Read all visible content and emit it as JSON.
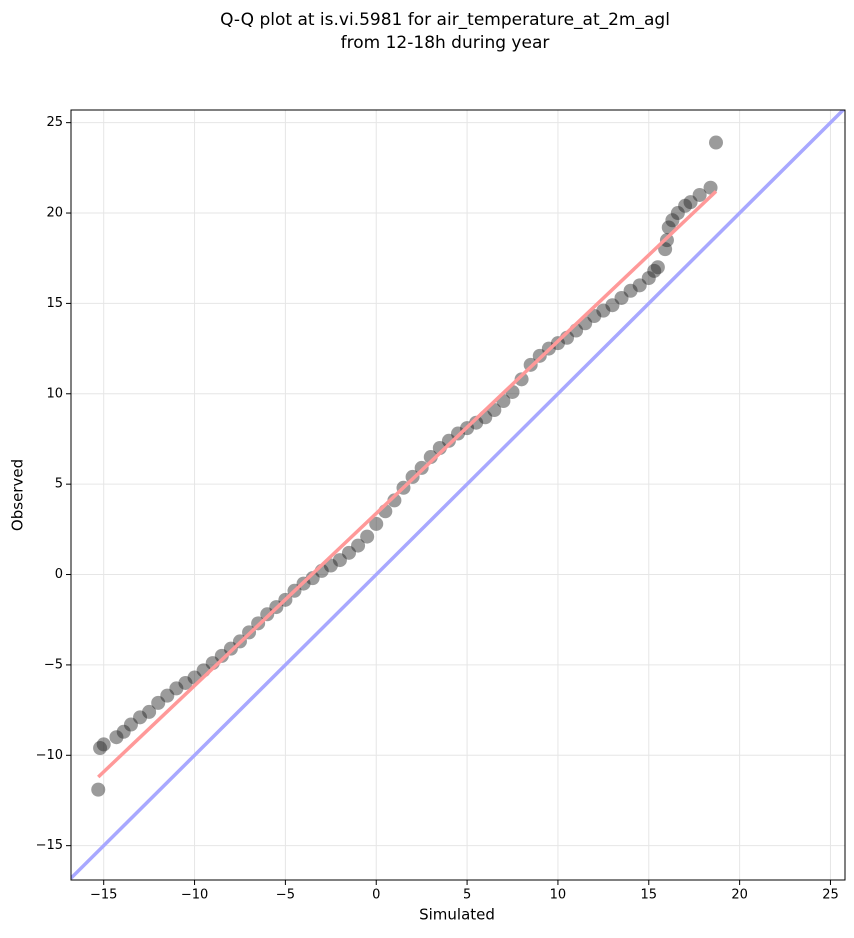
{
  "chart_data": {
    "type": "scatter",
    "title": [
      "Q-Q plot at is.vi.5981 for air_temperature_at_2m_agl",
      "from 12-18h during year"
    ],
    "xlabel": "Simulated",
    "ylabel": "Observed",
    "xlim": [
      -16.8,
      25.8
    ],
    "ylim": [
      -16.9,
      25.7
    ],
    "xticks": [
      {
        "value": -15,
        "label": "−15"
      },
      {
        "value": -10,
        "label": "−10"
      },
      {
        "value": -5,
        "label": "−5"
      },
      0,
      5,
      10,
      15,
      20,
      25
    ],
    "yticks": [
      {
        "value": -15,
        "label": "−15"
      },
      {
        "value": -10,
        "label": "−10"
      },
      {
        "value": -5,
        "label": "−5"
      },
      0,
      5,
      10,
      15,
      20,
      25
    ],
    "grid": true,
    "x": [
      -15.3,
      -15.2,
      -15.0,
      -14.3,
      -13.9,
      -13.5,
      -13,
      -12.5,
      -12,
      -11.5,
      -11,
      -10.5,
      -10,
      -9.5,
      -9,
      -8.5,
      -8,
      -7.5,
      -7,
      -6.5,
      -6,
      -5.5,
      -5,
      -4.5,
      -4,
      -3.5,
      -3,
      -2.5,
      -2,
      -1.5,
      -1,
      -0.5,
      0,
      0.5,
      1,
      1.5,
      2,
      2.5,
      3,
      3.5,
      4,
      4.5,
      5,
      5.5,
      6,
      6.5,
      7,
      7.5,
      8,
      8.5,
      9,
      9.5,
      10,
      10.5,
      11,
      11.5,
      12,
      12.5,
      13,
      13.5,
      14,
      14.5,
      15,
      15.3,
      15.5,
      15.9,
      16.0,
      16.1,
      16.3,
      16.6,
      17.0,
      17.3,
      17.8,
      18.4,
      18.7
    ],
    "series": [
      {
        "color": "#222222",
        "values": [
          -11.9,
          -9.6,
          -9.4,
          -9.0,
          -8.7,
          -8.3,
          -7.9,
          -7.6,
          -7.1,
          -6.7,
          -6.3,
          -6.0,
          -5.7,
          -5.3,
          -4.9,
          -4.5,
          -4.1,
          -3.7,
          -3.2,
          -2.7,
          -2.2,
          -1.8,
          -1.4,
          -0.9,
          -0.5,
          -0.2,
          0.2,
          0.5,
          0.8,
          1.2,
          1.6,
          2.1,
          2.8,
          3.5,
          4.1,
          4.8,
          5.4,
          5.9,
          6.5,
          7.0,
          7.4,
          7.8,
          8.1,
          8.4,
          8.7,
          9.1,
          9.6,
          10.1,
          10.8,
          11.6,
          12.1,
          12.5,
          12.8,
          13.1,
          13.5,
          13.9,
          14.3,
          14.6,
          14.9,
          15.3,
          15.7,
          16.0,
          16.4,
          16.8,
          17.0,
          18.0,
          18.5,
          19.2,
          19.6,
          20.0,
          20.4,
          20.6,
          21.0,
          21.4,
          23.9
        ]
      }
    ],
    "lines": [
      {
        "color": "#ff9999",
        "x": [
          -15.3,
          18.7
        ],
        "values": [
          -11.2,
          21.2
        ]
      },
      {
        "color": "#a8a8ff",
        "x": [
          -16.8,
          25.8
        ],
        "values": [
          -16.8,
          25.8
        ]
      }
    ]
  }
}
